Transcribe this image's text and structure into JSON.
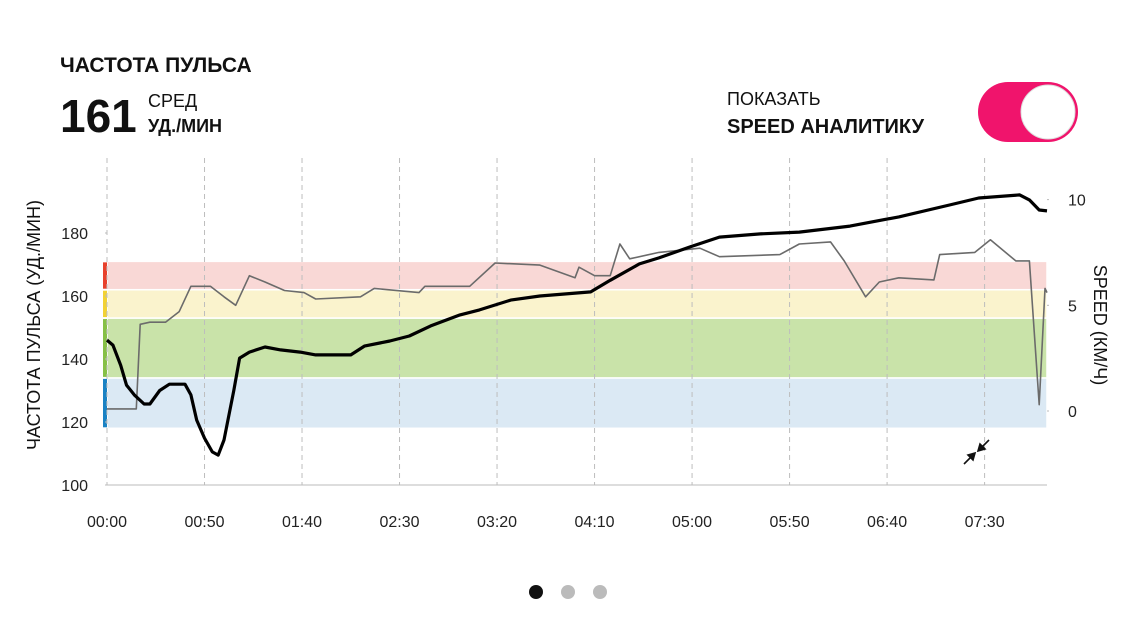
{
  "header": {
    "title": "ЧАСТОТА ПУЛЬСА",
    "average": "161",
    "average_label": "СРЕД",
    "unit": "УД./МИН"
  },
  "toggle": {
    "label": "ПОКАЗАТЬ",
    "label_bold": "SPEED АНАЛИТИКУ",
    "on": true,
    "color": "#f0146c"
  },
  "pager": {
    "count": 3,
    "active": 0
  },
  "chart_data": {
    "type": "line",
    "y_label": "ЧАСТОТА ПУЛЬСА (УД./МИН)",
    "y2_label": "SPEED (КМ/Ч)",
    "xlim": [
      0,
      482
    ],
    "xticks": [
      {
        "value": 0,
        "label": "00:00"
      },
      {
        "value": 50,
        "label": "00:50"
      },
      {
        "value": 100,
        "label": "01:40"
      },
      {
        "value": 150,
        "label": "02:30"
      },
      {
        "value": 200,
        "label": "03:20"
      },
      {
        "value": 250,
        "label": "04:10"
      },
      {
        "value": 300,
        "label": "05:00"
      },
      {
        "value": 350,
        "label": "05:50"
      },
      {
        "value": 400,
        "label": "06:40"
      },
      {
        "value": 450,
        "label": "07:30"
      }
    ],
    "ylim": [
      100,
      200
    ],
    "yticks": [
      100,
      120,
      140,
      160,
      180
    ],
    "y2lim": [
      -3.5,
      11.4
    ],
    "y2ticks": [
      0,
      5,
      10
    ],
    "grid": true,
    "zones": [
      {
        "from": 118,
        "to": 134,
        "color": "#1a82c4",
        "fill": "#dbe9f4"
      },
      {
        "from": 134,
        "to": 153,
        "color": "#86c046",
        "fill": "#c9e3a9"
      },
      {
        "from": 153,
        "to": 162,
        "color": "#f2d234",
        "fill": "#faf3cd"
      },
      {
        "from": 162,
        "to": 171,
        "color": "#e8412c",
        "fill": "#f9d8d6"
      }
    ],
    "series": [
      {
        "color": "#000000",
        "width": 3.2,
        "x": [
          0,
          3,
          7,
          10,
          14,
          19,
          22,
          27,
          32,
          40,
          43,
          46,
          50,
          54,
          57,
          60,
          65,
          68,
          73,
          81,
          89,
          99,
          107,
          125,
          132,
          145,
          155,
          166,
          181,
          191,
          207,
          222,
          248,
          258,
          273,
          283,
          299,
          314,
          335,
          355,
          381,
          406,
          432,
          447,
          468,
          473,
          478,
          482
        ],
        "values": [
          146,
          144.4,
          138,
          131.7,
          128.6,
          125.7,
          125.7,
          130,
          132,
          132,
          128.6,
          120.6,
          114.9,
          110.5,
          109.5,
          114.3,
          130,
          140.3,
          142.2,
          143.8,
          142.9,
          142.2,
          141.3,
          141.3,
          144.1,
          145.7,
          147.3,
          150.5,
          154,
          155.6,
          158.7,
          160,
          161.3,
          165,
          170.2,
          172.1,
          175.6,
          178.7,
          179.7,
          180.3,
          182.2,
          185.1,
          188.9,
          191.1,
          192.1,
          190.5,
          187.3,
          187
        ]
      },
      {
        "color": "#6b6b6b",
        "width": 1.6,
        "axis": "y2",
        "x": [
          0,
          15,
          17,
          22,
          30,
          37,
          43,
          53,
          60,
          66,
          73,
          81,
          91,
          101,
          107,
          130,
          137,
          160,
          163,
          186,
          199,
          222,
          240,
          242,
          250,
          258,
          263,
          268,
          283,
          304,
          314,
          345,
          355,
          371,
          378,
          389,
          396,
          406,
          424,
          427,
          445,
          453,
          466,
          473,
          478,
          481,
          482
        ],
        "values": [
          0.1,
          0.1,
          4.1,
          4.2,
          4.2,
          4.7,
          5.9,
          5.9,
          5.4,
          5.0,
          6.4,
          6.1,
          5.7,
          5.6,
          5.3,
          5.4,
          5.8,
          5.6,
          5.9,
          5.9,
          7.0,
          6.9,
          6.3,
          6.8,
          6.4,
          6.4,
          7.9,
          7.2,
          7.5,
          7.7,
          7.3,
          7.4,
          7.9,
          8.0,
          7.1,
          5.4,
          6.1,
          6.3,
          6.2,
          7.4,
          7.5,
          8.1,
          7.1,
          7.1,
          0.3,
          5.8,
          5.6
        ]
      }
    ]
  }
}
